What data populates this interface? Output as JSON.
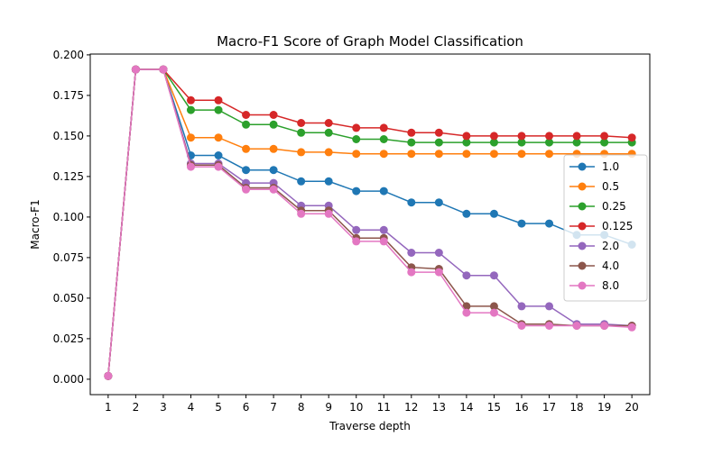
{
  "chart_data": {
    "type": "line",
    "title": "Macro-F1 Score of Graph Model Classification",
    "xlabel": "Traverse depth",
    "ylabel": "Macro-F1",
    "x": [
      1,
      2,
      3,
      4,
      5,
      6,
      7,
      8,
      9,
      10,
      11,
      12,
      13,
      14,
      15,
      16,
      17,
      18,
      19,
      20
    ],
    "xlim": [
      0.35,
      20.65
    ],
    "ylim": [
      -0.0095,
      0.2005
    ],
    "yticks": [
      0.0,
      0.025,
      0.05,
      0.075,
      0.1,
      0.125,
      0.15,
      0.175,
      0.2
    ],
    "ytick_labels": [
      "0.000",
      "0.025",
      "0.050",
      "0.075",
      "0.100",
      "0.125",
      "0.150",
      "0.175",
      "0.200"
    ],
    "grid": false,
    "legend_position": "center-right",
    "series": [
      {
        "name": "1.0",
        "color": "#1f77b4",
        "values": [
          0.002,
          0.191,
          0.191,
          0.138,
          0.138,
          0.129,
          0.129,
          0.122,
          0.122,
          0.116,
          0.116,
          0.109,
          0.109,
          0.102,
          0.102,
          0.096,
          0.096,
          0.089,
          0.089,
          0.083
        ]
      },
      {
        "name": "0.5",
        "color": "#ff7f0e",
        "values": [
          0.002,
          0.191,
          0.191,
          0.149,
          0.149,
          0.142,
          0.142,
          0.14,
          0.14,
          0.139,
          0.139,
          0.139,
          0.139,
          0.139,
          0.139,
          0.139,
          0.139,
          0.139,
          0.139,
          0.139
        ]
      },
      {
        "name": "0.25",
        "color": "#2ca02c",
        "values": [
          0.002,
          0.191,
          0.191,
          0.166,
          0.166,
          0.157,
          0.157,
          0.152,
          0.152,
          0.148,
          0.148,
          0.146,
          0.146,
          0.146,
          0.146,
          0.146,
          0.146,
          0.146,
          0.146,
          0.146
        ]
      },
      {
        "name": "0.125",
        "color": "#d62728",
        "values": [
          0.002,
          0.191,
          0.191,
          0.172,
          0.172,
          0.163,
          0.163,
          0.158,
          0.158,
          0.155,
          0.155,
          0.152,
          0.152,
          0.15,
          0.15,
          0.15,
          0.15,
          0.15,
          0.15,
          0.149
        ]
      },
      {
        "name": "2.0",
        "color": "#9467bd",
        "values": [
          0.002,
          0.191,
          0.191,
          0.133,
          0.133,
          0.121,
          0.121,
          0.107,
          0.107,
          0.092,
          0.092,
          0.078,
          0.078,
          0.064,
          0.064,
          0.045,
          0.045,
          0.034,
          0.034,
          0.033
        ]
      },
      {
        "name": "4.0",
        "color": "#8c564b",
        "values": [
          0.002,
          0.191,
          0.191,
          0.132,
          0.132,
          0.118,
          0.118,
          0.104,
          0.104,
          0.087,
          0.087,
          0.069,
          0.068,
          0.045,
          0.045,
          0.034,
          0.034,
          0.033,
          0.033,
          0.033
        ]
      },
      {
        "name": "8.0",
        "color": "#e377c2",
        "values": [
          0.002,
          0.191,
          0.191,
          0.131,
          0.131,
          0.117,
          0.117,
          0.102,
          0.102,
          0.085,
          0.085,
          0.066,
          0.066,
          0.041,
          0.041,
          0.033,
          0.033,
          0.033,
          0.033,
          0.032
        ]
      }
    ]
  }
}
